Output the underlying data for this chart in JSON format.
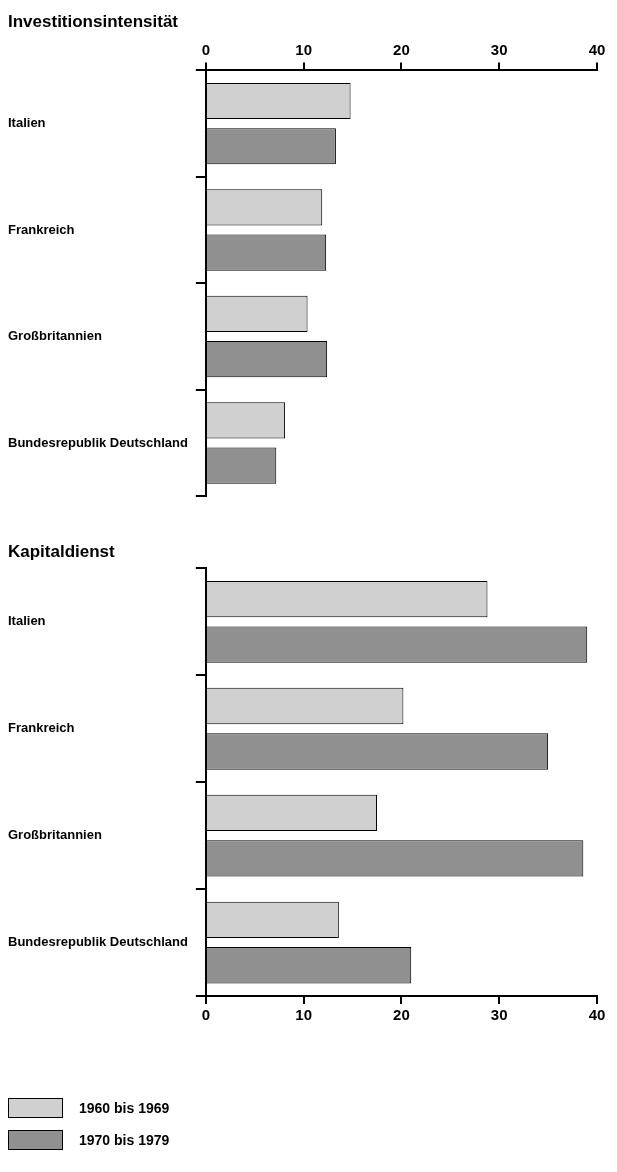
{
  "chart_data": [
    {
      "type": "bar",
      "orientation": "horizontal",
      "title": "Investitionsintensität",
      "categories": [
        "Italien",
        "Frankreich",
        "Großbritannien",
        "Bundesrepublik Deutschland"
      ],
      "x2lim": [
        0,
        40
      ],
      "x2ticks": [
        0,
        10,
        20,
        30,
        40
      ],
      "grid": false,
      "legend": false,
      "series": [
        {
          "color": "#d0d0d0",
          "axis": "x2",
          "values": [
            14.8,
            11.9,
            10.4,
            8.1
          ]
        },
        {
          "color": "#909090",
          "axis": "x2",
          "values": [
            13.3,
            12.3,
            12.4,
            7.2
          ]
        }
      ]
    },
    {
      "type": "bar",
      "orientation": "horizontal",
      "title": "Kapitaldienst",
      "categories": [
        "Italien",
        "Frankreich",
        "Großbritannien",
        "Bundesrepublik Deutschland"
      ],
      "xlim": [
        0,
        40
      ],
      "xticks": [
        0,
        10,
        20,
        30,
        40
      ],
      "grid": false,
      "legend": "bottom",
      "series": [
        {
          "name": "1960 bis 1969",
          "color": "#d0d0d0",
          "values": [
            28.8,
            20.2,
            17.5,
            13.6
          ]
        },
        {
          "name": "1970 bis 1979",
          "color": "#909090",
          "values": [
            39,
            35,
            38.6,
            21
          ]
        }
      ]
    }
  ]
}
